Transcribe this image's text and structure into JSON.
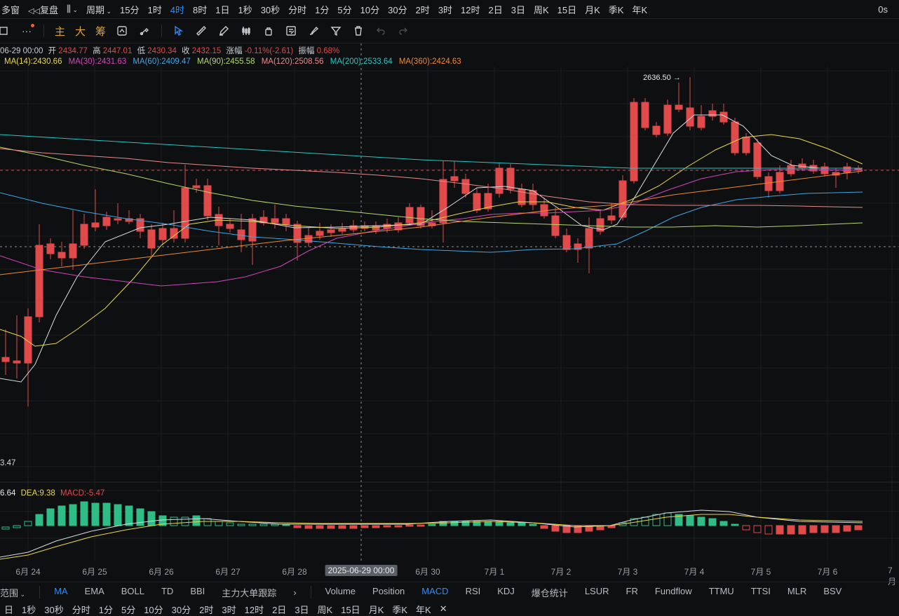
{
  "topbar": {
    "multi_window": "多窗",
    "replay": "复盘",
    "period_label": "周期",
    "intervals": [
      "15分",
      "1时",
      "4时",
      "8时",
      "1日",
      "1秒",
      "30秒",
      "分时",
      "1分",
      "5分",
      "10分",
      "30分",
      "2时",
      "3时",
      "12时",
      "2日",
      "3日",
      "周K",
      "15日",
      "月K",
      "季K",
      "年K"
    ],
    "active_interval": "4时",
    "right_label": "0s"
  },
  "toolbar": {
    "more": "···",
    "zhu": "主",
    "da": "大",
    "chou": "筹"
  },
  "info": {
    "date": "06-29 00:00",
    "open_label": "开",
    "open": "2434.77",
    "high_label": "高",
    "high": "2447.01",
    "low_label": "低",
    "low": "2430.34",
    "close_label": "收",
    "close": "2432.15",
    "change_label": "涨幅",
    "change": "-0.11%(-2.61)",
    "amp_label": "振幅",
    "amp": "0.68%"
  },
  "ma": [
    {
      "label": "MA(14):2430.66",
      "color": "#e8d84a"
    },
    {
      "label": "MA(30):2431.63",
      "color": "#d045b8"
    },
    {
      "label": "MA(60):2409.47",
      "color": "#3ea6e6"
    },
    {
      "label": "MA(90):2455.58",
      "color": "#b6d86a"
    },
    {
      "label": "MA(120):2508.56",
      "color": "#e88a8a"
    },
    {
      "label": "MA(200):2533.64",
      "color": "#27c6c6"
    },
    {
      "label": "MA(360):2424.63",
      "color": "#f08a2a"
    }
  ],
  "peak_label": "2636.50",
  "pane_label": "3.47",
  "macd_legend": {
    "dif": "6.64",
    "dea": "DEA:9.38",
    "macd": "MACD:-5.47"
  },
  "xaxis": {
    "ticks": [
      "6月 24",
      "6月 25",
      "6月 26",
      "6月 27",
      "6月 28",
      "6月 30",
      "7月 1",
      "7月 2",
      "7月 3",
      "7月 4",
      "7月 5",
      "7月 6",
      "7月"
    ],
    "cursor_label": "2025-06-29 00:00"
  },
  "indicators": {
    "range_label": "范围",
    "main": [
      "MA",
      "EMA",
      "BOLL",
      "TD",
      "BBI",
      "主力大单跟踪"
    ],
    "active_main": "MA",
    "sub": [
      "Volume",
      "Position",
      "MACD",
      "RSI",
      "KDJ",
      "爆仓统计",
      "LSUR",
      "FR",
      "Fundflow",
      "TTMU",
      "TTSI",
      "MLR",
      "BSV"
    ],
    "active_sub": "MACD"
  },
  "bottombar": [
    "日",
    "1秒",
    "30秒",
    "分时",
    "1分",
    "5分",
    "10分",
    "30分",
    "2时",
    "3时",
    "12时",
    "2日",
    "3日",
    "周K",
    "15日",
    "月K",
    "季K",
    "年K"
  ],
  "colors": {
    "up": "#2ebd85",
    "down": "#e04a4a",
    "accent": "#2f8cf5",
    "gold": "#e0a12c"
  }
}
